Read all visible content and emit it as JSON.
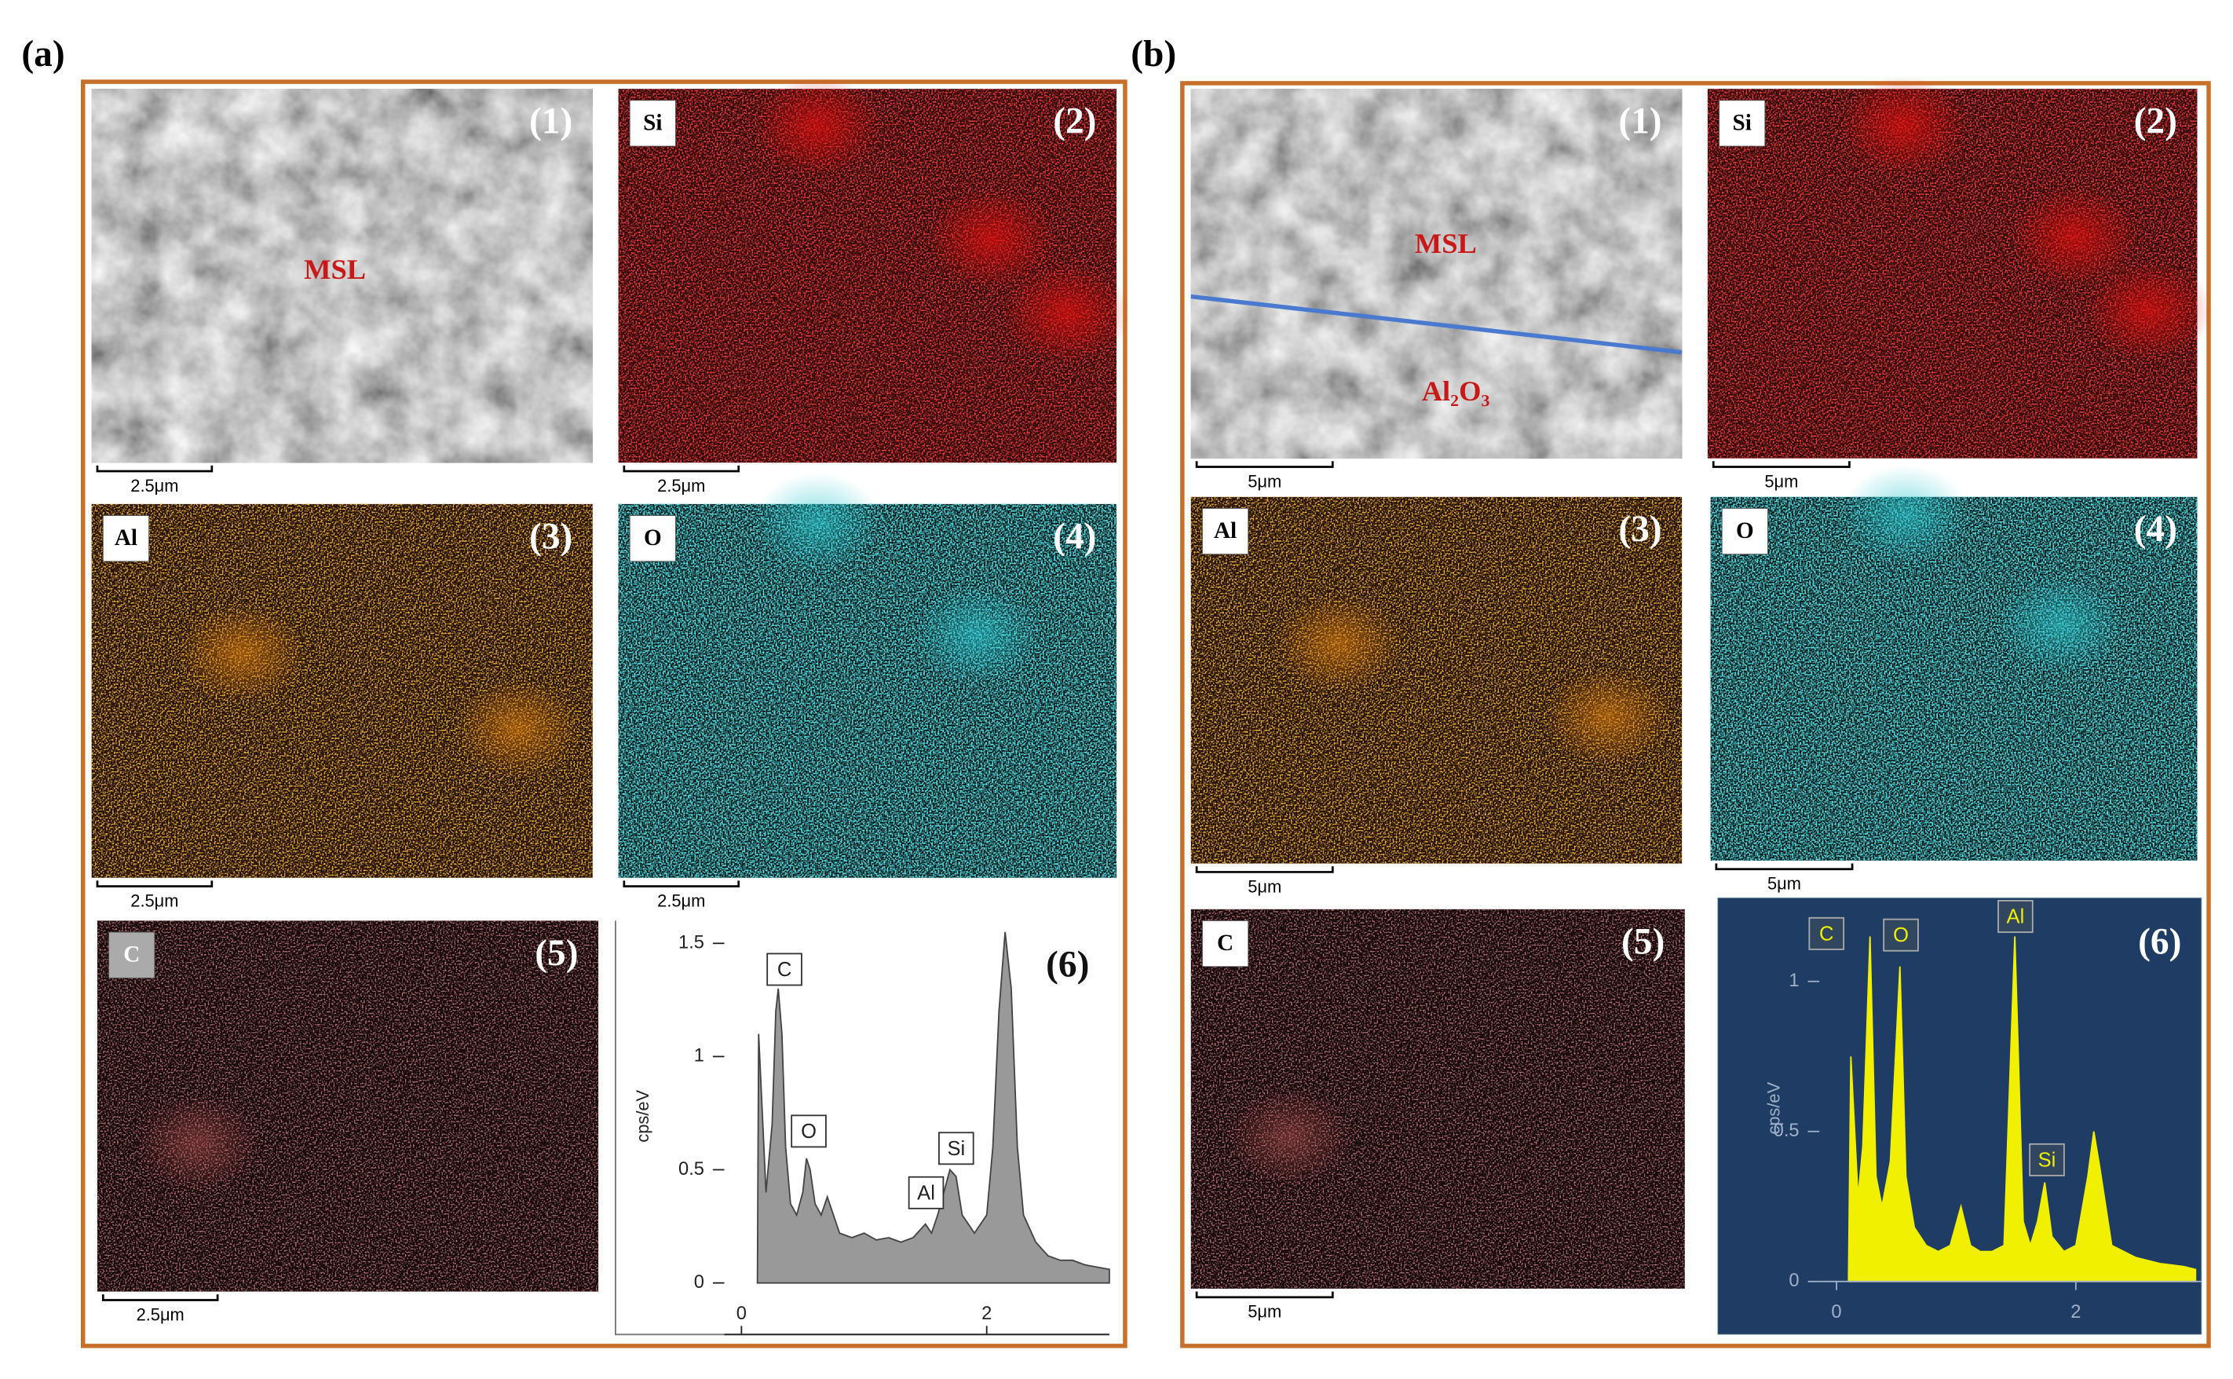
{
  "panels": [
    {
      "label": "(a)",
      "images": [
        {
          "number": "(1)",
          "text": "MSL",
          "scale": "2.5μm"
        },
        {
          "number": "(2)",
          "element": "Si",
          "scale": "2.5μm"
        },
        {
          "number": "(3)",
          "element": "Al",
          "scale": "2.5μm"
        },
        {
          "number": "(4)",
          "element": "O",
          "scale": "2.5μm"
        },
        {
          "number": "(5)",
          "element": "C",
          "scale": "2.5μm"
        }
      ],
      "spectrum": {
        "type": "area",
        "number": "(6)",
        "ylabel": "cps/eV",
        "xlim": [
          0,
          3
        ],
        "ylim": [
          0,
          1.6
        ],
        "xticks": [
          0,
          2
        ],
        "yticks": [
          0,
          0.5,
          1,
          1.5
        ],
        "x": [
          0.13,
          0.14,
          0.2,
          0.25,
          0.28,
          0.3,
          0.33,
          0.36,
          0.4,
          0.45,
          0.5,
          0.53,
          0.56,
          0.6,
          0.65,
          0.7,
          0.75,
          0.8,
          0.9,
          1.0,
          1.1,
          1.2,
          1.3,
          1.4,
          1.5,
          1.55,
          1.6,
          1.65,
          1.7,
          1.75,
          1.8,
          1.9,
          2.0,
          2.05,
          2.1,
          2.15,
          2.2,
          2.25,
          2.3,
          2.4,
          2.5,
          2.6,
          2.7,
          2.8,
          2.9,
          3.0
        ],
        "y": [
          0,
          1.1,
          0.4,
          0.7,
          1.2,
          1.3,
          1.1,
          0.6,
          0.35,
          0.3,
          0.4,
          0.55,
          0.5,
          0.35,
          0.3,
          0.38,
          0.3,
          0.22,
          0.2,
          0.22,
          0.19,
          0.2,
          0.18,
          0.2,
          0.26,
          0.22,
          0.3,
          0.4,
          0.5,
          0.47,
          0.3,
          0.22,
          0.3,
          0.6,
          1.2,
          1.55,
          1.3,
          0.6,
          0.3,
          0.18,
          0.12,
          0.1,
          0.1,
          0.08,
          0.07,
          0.06
        ],
        "peaks": [
          "C",
          "O",
          "Al",
          "Si"
        ]
      }
    },
    {
      "label": "(b)",
      "images": [
        {
          "number": "(1)",
          "text": "MSL",
          "text2": "Al₂O₃",
          "scale": "5μm"
        },
        {
          "number": "(2)",
          "element": "Si",
          "scale": "5μm"
        },
        {
          "number": "(3)",
          "element": "Al",
          "scale": "5μm"
        },
        {
          "number": "(4)",
          "element": "O",
          "scale": "5μm"
        },
        {
          "number": "(5)",
          "element": "C",
          "scale": "5μm"
        }
      ],
      "spectrum": {
        "type": "area",
        "number": "(6)",
        "ylabel": "cps/eV",
        "xlim": [
          0,
          3.05
        ],
        "ylim": [
          0,
          1.25
        ],
        "xticks": [
          0,
          2
        ],
        "yticks": [
          0,
          0.5,
          1
        ],
        "x": [
          0.1,
          0.12,
          0.18,
          0.22,
          0.28,
          0.33,
          0.38,
          0.45,
          0.53,
          0.58,
          0.65,
          0.75,
          0.85,
          0.95,
          1.04,
          1.12,
          1.2,
          1.3,
          1.4,
          1.49,
          1.56,
          1.62,
          1.68,
          1.74,
          1.8,
          1.9,
          2.0,
          2.1,
          2.15,
          2.2,
          2.3,
          2.5,
          2.7,
          2.9,
          3.0
        ],
        "y": [
          0,
          0.75,
          0.28,
          0.45,
          1.15,
          0.35,
          0.25,
          0.4,
          1.05,
          0.35,
          0.18,
          0.12,
          0.1,
          0.12,
          0.25,
          0.12,
          0.1,
          0.1,
          0.12,
          1.15,
          0.2,
          0.12,
          0.2,
          0.33,
          0.15,
          0.1,
          0.12,
          0.35,
          0.5,
          0.38,
          0.12,
          0.08,
          0.06,
          0.05,
          0.04
        ],
        "peaks": [
          "C",
          "O",
          "Al",
          "Si"
        ]
      }
    }
  ]
}
